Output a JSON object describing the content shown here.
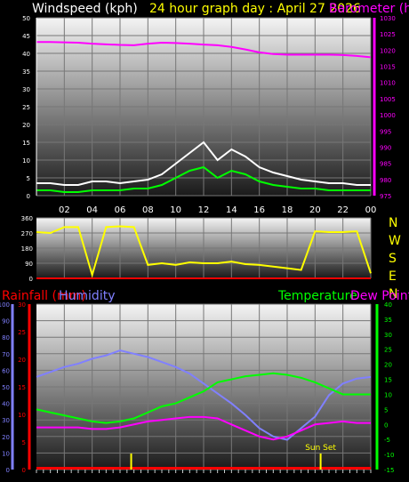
{
  "header": {
    "windspeed_label": "Windspeed (kph)",
    "title": "24 hour graph day : April 27 2026",
    "barometer_label": "Barometer (hPa)"
  },
  "lower_header": {
    "rainfall_label": "Rainfall (mm)",
    "humidity_label": "Humidity",
    "temperature_label": "Temperature",
    "dewpoint_label": "Dew Point"
  },
  "colors": {
    "wind": "#ffffff",
    "gust": "#00ff00",
    "barometer": "#ff00ff",
    "direction": "#ffff00",
    "rainfall": "#ff0000",
    "humidity": "#8080ff",
    "temperature": "#00ff00",
    "dewpoint": "#ff00ff"
  },
  "chart_data": [
    {
      "type": "line",
      "name": "wind-barometer",
      "x_ticks": [
        "02",
        "04",
        "06",
        "08",
        "10",
        "12",
        "14",
        "16",
        "18",
        "20",
        "22",
        "00"
      ],
      "left_axis": {
        "label": "Windspeed (kph)",
        "ticks": [
          0,
          5,
          10,
          15,
          20,
          25,
          30,
          35,
          40,
          45,
          50
        ],
        "ylim": [
          0,
          50
        ]
      },
      "right_axis": {
        "label": "Barometer (hPa)",
        "ticks": [
          975,
          980,
          985,
          990,
          995,
          1000,
          1005,
          1010,
          1015,
          1020,
          1025,
          1030
        ],
        "ylim": [
          975,
          1030
        ]
      },
      "x": [
        0,
        1,
        2,
        3,
        4,
        5,
        6,
        7,
        8,
        9,
        10,
        11,
        12,
        13,
        14,
        15,
        16,
        17,
        18,
        19,
        20,
        21,
        22,
        23,
        24
      ],
      "series": [
        {
          "axis": "right",
          "values": [
            1022.5,
            1022.5,
            1022.4,
            1022.3,
            1022.0,
            1021.8,
            1021.6,
            1021.5,
            1022.0,
            1022.3,
            1022.2,
            1022.0,
            1021.7,
            1021.5,
            1021.0,
            1020.2,
            1019.3,
            1018.8,
            1018.6,
            1018.6,
            1018.6,
            1018.6,
            1018.5,
            1018.2,
            1017.8
          ]
        },
        {
          "axis": "left",
          "values": [
            3.5,
            3.5,
            3.0,
            3.0,
            4.0,
            4.0,
            3.5,
            4.0,
            4.5,
            6.0,
            9.0,
            12.0,
            15.0,
            10.0,
            13.0,
            11.0,
            8.0,
            6.5,
            5.5,
            4.5,
            4.0,
            3.5,
            3.5,
            3.0,
            3.0
          ]
        },
        {
          "axis": "left",
          "values": [
            1.5,
            1.5,
            1.0,
            1.0,
            1.5,
            1.5,
            1.5,
            2.0,
            2.0,
            3.0,
            5.0,
            7.0,
            8.0,
            5.0,
            7.0,
            6.0,
            4.0,
            3.0,
            2.5,
            2.0,
            2.0,
            1.5,
            1.5,
            1.5,
            1.5
          ]
        }
      ]
    },
    {
      "type": "scatter",
      "name": "wind-direction",
      "x_ticks": [],
      "axis": {
        "ticks": [
          0,
          90,
          180,
          270,
          360
        ],
        "ylim": [
          0,
          360
        ]
      },
      "compass_labels": [
        "N",
        "W",
        "S",
        "E",
        "N"
      ],
      "x": [
        0,
        1,
        2,
        3,
        4,
        5,
        6,
        7,
        8,
        9,
        10,
        11,
        12,
        13,
        14,
        15,
        16,
        17,
        18,
        19,
        20,
        21,
        22,
        23,
        24
      ],
      "values": [
        275,
        270,
        305,
        305,
        20,
        305,
        310,
        305,
        80,
        90,
        80,
        95,
        90,
        90,
        100,
        85,
        80,
        70,
        60,
        50,
        280,
        275,
        275,
        280,
        30
      ]
    },
    {
      "type": "line",
      "name": "temperature-humidity-rain",
      "x_ticks": [],
      "rain_axis": {
        "label": "Rainfall (mm)",
        "ticks": [
          0,
          5,
          10,
          15,
          20,
          25,
          30
        ],
        "ylim": [
          0,
          30
        ]
      },
      "humidity_axis": {
        "label": "Humidity",
        "ticks": [
          0,
          10,
          20,
          30,
          40,
          50,
          60,
          70,
          80,
          90,
          100
        ],
        "ylim": [
          0,
          100
        ]
      },
      "temperature_axis": {
        "label": "Temperature",
        "ticks": [
          -15,
          -10,
          -5,
          0,
          5,
          10,
          15,
          20,
          25,
          30,
          35,
          40
        ],
        "ylim": [
          -15,
          40
        ]
      },
      "x": [
        0,
        1,
        2,
        3,
        4,
        5,
        6,
        7,
        8,
        9,
        10,
        11,
        12,
        13,
        14,
        15,
        16,
        17,
        18,
        19,
        20,
        21,
        22,
        23,
        24
      ],
      "series": [
        {
          "axis": "humidity",
          "values": [
            56,
            59,
            62,
            64,
            67,
            69,
            72,
            70,
            68,
            65,
            62,
            58,
            52,
            46,
            40,
            33,
            25,
            20,
            18,
            25,
            32,
            45,
            52,
            55,
            56
          ]
        },
        {
          "axis": "temperature",
          "values": [
            5,
            4,
            3,
            2,
            1,
            0.5,
            1,
            2,
            4,
            6,
            7,
            9,
            11,
            14,
            15,
            16,
            16.5,
            17,
            16.5,
            15.5,
            14,
            12,
            10,
            10,
            10
          ]
        },
        {
          "axis": "temperature",
          "values": [
            -1,
            -1,
            -1,
            -1,
            -1.5,
            -1.5,
            -1,
            0,
            1,
            1.5,
            2,
            2.5,
            2.5,
            2,
            0,
            -2,
            -4,
            -5,
            -4,
            -2,
            0,
            0.5,
            1,
            0.5,
            0.5
          ]
        },
        {
          "axis": "rain",
          "values": [
            0,
            0,
            0,
            0,
            0,
            0,
            0,
            0,
            0,
            0,
            0,
            0,
            0,
            0,
            0,
            0,
            0,
            0,
            0,
            0,
            0,
            0,
            0,
            0,
            0
          ]
        }
      ],
      "markers": [
        {
          "label": "",
          "x": 6.8
        },
        {
          "label": "Sun Set",
          "x": 20.4
        }
      ]
    }
  ]
}
